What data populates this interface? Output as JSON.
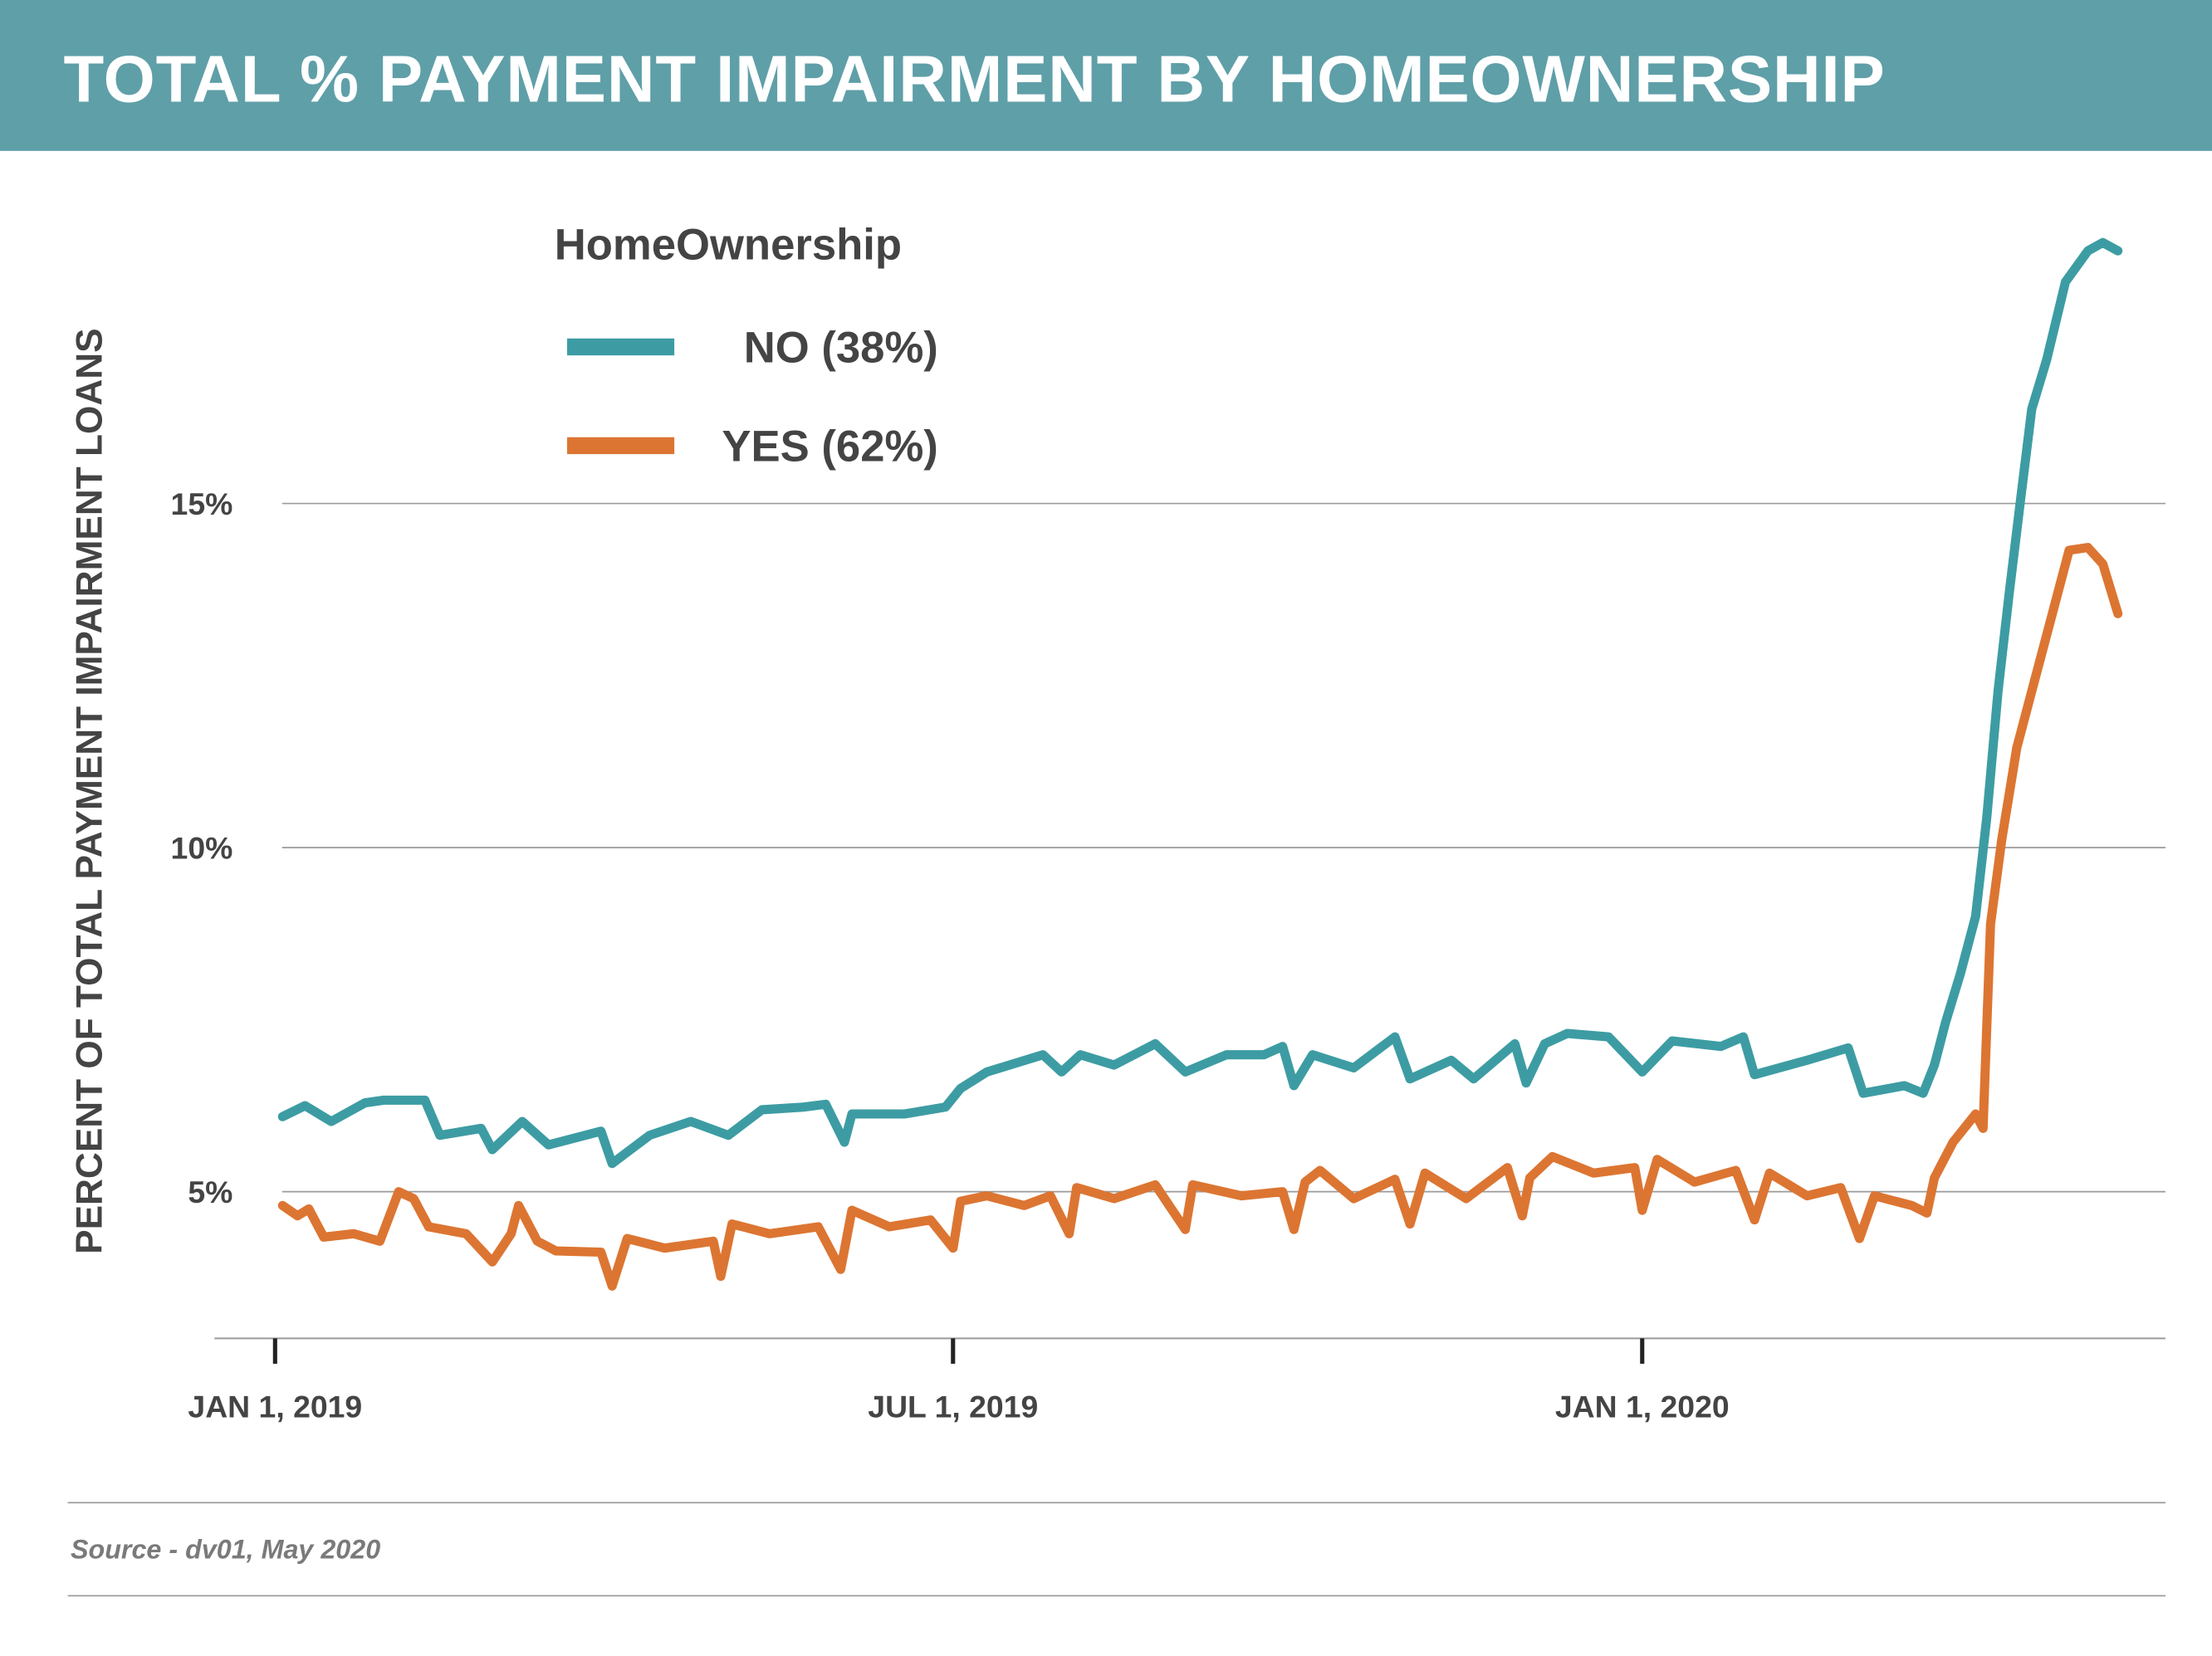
{
  "header": {
    "title": "TOTAL % PAYMENT IMPAIRMENT BY HOMEOWNERSHIP",
    "background": "#5f9fa8"
  },
  "source": "Source - dv01, May 2020",
  "chart_data": {
    "type": "line",
    "title": "TOTAL % PAYMENT IMPAIRMENT BY HOMEOWNERSHIP",
    "xlabel": "",
    "ylabel": "PERCENT OF TOTAL PAYMENT IMPAIRMENT LOANS",
    "x_ticks": [
      {
        "date": "2019-01-01",
        "label": "JAN 1, 2019"
      },
      {
        "date": "2019-07-01",
        "label": "JUL 1, 2019"
      },
      {
        "date": "2020-01-01",
        "label": "JAN 1, 2020"
      }
    ],
    "y_ticks": [
      {
        "value": 5,
        "label": "5%"
      },
      {
        "value": 10,
        "label": "10%"
      },
      {
        "value": 15,
        "label": "15%"
      }
    ],
    "ylim": [
      2.9,
      19.2
    ],
    "grid": "horizontal",
    "legend": {
      "title": "HomeOwnership",
      "placement": "top-left"
    },
    "series": [
      {
        "name": "NO (38%)",
        "color": "#3d9ca3",
        "points": [
          [
            "2019-01-03",
            6.09
          ],
          [
            "2019-01-09",
            6.25
          ],
          [
            "2019-01-16",
            6.02
          ],
          [
            "2019-01-25",
            6.29
          ],
          [
            "2019-01-30",
            6.33
          ],
          [
            "2019-02-10",
            6.33
          ],
          [
            "2019-02-14",
            5.82
          ],
          [
            "2019-02-25",
            5.92
          ],
          [
            "2019-02-28",
            5.61
          ],
          [
            "2019-03-08",
            6.02
          ],
          [
            "2019-03-15",
            5.68
          ],
          [
            "2019-03-29",
            5.88
          ],
          [
            "2019-04-01",
            5.41
          ],
          [
            "2019-04-11",
            5.82
          ],
          [
            "2019-04-22",
            6.02
          ],
          [
            "2019-05-02",
            5.82
          ],
          [
            "2019-05-11",
            6.19
          ],
          [
            "2019-05-22",
            6.23
          ],
          [
            "2019-05-28",
            6.27
          ],
          [
            "2019-06-02",
            5.72
          ],
          [
            "2019-06-04",
            6.13
          ],
          [
            "2019-06-18",
            6.13
          ],
          [
            "2019-06-29",
            6.23
          ],
          [
            "2019-07-03",
            6.5
          ],
          [
            "2019-07-10",
            6.74
          ],
          [
            "2019-07-25",
            6.99
          ],
          [
            "2019-07-30",
            6.74
          ],
          [
            "2019-08-04",
            6.99
          ],
          [
            "2019-08-13",
            6.84
          ],
          [
            "2019-08-24",
            7.15
          ],
          [
            "2019-09-01",
            6.74
          ],
          [
            "2019-09-12",
            6.99
          ],
          [
            "2019-09-22",
            6.99
          ],
          [
            "2019-09-27",
            7.11
          ],
          [
            "2019-09-30",
            6.54
          ],
          [
            "2019-10-05",
            6.99
          ],
          [
            "2019-10-16",
            6.8
          ],
          [
            "2019-10-27",
            7.25
          ],
          [
            "2019-10-31",
            6.64
          ],
          [
            "2019-11-11",
            6.91
          ],
          [
            "2019-11-17",
            6.64
          ],
          [
            "2019-11-28",
            7.15
          ],
          [
            "2019-12-01",
            6.58
          ],
          [
            "2019-12-06",
            7.15
          ],
          [
            "2019-12-12",
            7.3
          ],
          [
            "2019-12-23",
            7.25
          ],
          [
            "2020-01-01",
            6.74
          ],
          [
            "2020-01-09",
            7.19
          ],
          [
            "2020-01-22",
            7.11
          ],
          [
            "2020-01-28",
            7.25
          ],
          [
            "2020-01-31",
            6.7
          ],
          [
            "2020-02-14",
            6.91
          ],
          [
            "2020-02-25",
            7.09
          ],
          [
            "2020-02-29",
            6.43
          ],
          [
            "2020-03-11",
            6.54
          ],
          [
            "2020-03-16",
            6.43
          ],
          [
            "2020-03-19",
            6.84
          ],
          [
            "2020-03-22",
            7.46
          ],
          [
            "2020-03-26",
            8.18
          ],
          [
            "2020-03-30",
            9.0
          ],
          [
            "2020-04-02",
            10.43
          ],
          [
            "2020-04-05",
            12.27
          ],
          [
            "2020-04-08",
            13.71
          ],
          [
            "2020-04-11",
            15.04
          ],
          [
            "2020-04-14",
            16.37
          ],
          [
            "2020-04-18",
            17.09
          ],
          [
            "2020-04-23",
            18.22
          ],
          [
            "2020-04-29",
            18.67
          ],
          [
            "2020-05-03",
            18.79
          ],
          [
            "2020-05-07",
            18.67
          ]
        ]
      },
      {
        "name": "YES (62%)",
        "color": "#dc7532",
        "points": [
          [
            "2019-01-03",
            4.8
          ],
          [
            "2019-01-07",
            4.65
          ],
          [
            "2019-01-10",
            4.75
          ],
          [
            "2019-01-14",
            4.34
          ],
          [
            "2019-01-22",
            4.39
          ],
          [
            "2019-01-29",
            4.28
          ],
          [
            "2019-02-03",
            5.0
          ],
          [
            "2019-02-07",
            4.9
          ],
          [
            "2019-02-11",
            4.49
          ],
          [
            "2019-02-21",
            4.39
          ],
          [
            "2019-02-28",
            3.98
          ],
          [
            "2019-03-05",
            4.39
          ],
          [
            "2019-03-07",
            4.8
          ],
          [
            "2019-03-12",
            4.28
          ],
          [
            "2019-03-17",
            4.14
          ],
          [
            "2019-03-29",
            4.12
          ],
          [
            "2019-04-01",
            3.63
          ],
          [
            "2019-04-05",
            4.32
          ],
          [
            "2019-04-15",
            4.18
          ],
          [
            "2019-04-28",
            4.28
          ],
          [
            "2019-04-30",
            3.77
          ],
          [
            "2019-05-03",
            4.53
          ],
          [
            "2019-05-13",
            4.39
          ],
          [
            "2019-05-26",
            4.49
          ],
          [
            "2019-06-01",
            3.87
          ],
          [
            "2019-06-04",
            4.73
          ],
          [
            "2019-06-14",
            4.49
          ],
          [
            "2019-06-25",
            4.59
          ],
          [
            "2019-07-01",
            4.18
          ],
          [
            "2019-07-03",
            4.86
          ],
          [
            "2019-07-10",
            4.94
          ],
          [
            "2019-07-20",
            4.8
          ],
          [
            "2019-07-27",
            4.94
          ],
          [
            "2019-08-01",
            4.39
          ],
          [
            "2019-08-03",
            5.06
          ],
          [
            "2019-08-13",
            4.9
          ],
          [
            "2019-08-24",
            5.1
          ],
          [
            "2019-09-01",
            4.45
          ],
          [
            "2019-09-03",
            5.1
          ],
          [
            "2019-09-16",
            4.94
          ],
          [
            "2019-09-27",
            5.0
          ],
          [
            "2019-09-30",
            4.45
          ],
          [
            "2019-10-03",
            5.14
          ],
          [
            "2019-10-07",
            5.31
          ],
          [
            "2019-10-16",
            4.9
          ],
          [
            "2019-10-27",
            5.18
          ],
          [
            "2019-10-31",
            4.53
          ],
          [
            "2019-11-04",
            5.27
          ],
          [
            "2019-11-15",
            4.9
          ],
          [
            "2019-11-26",
            5.35
          ],
          [
            "2019-11-30",
            4.65
          ],
          [
            "2019-12-02",
            5.2
          ],
          [
            "2019-12-08",
            5.51
          ],
          [
            "2019-12-19",
            5.27
          ],
          [
            "2019-12-30",
            5.35
          ],
          [
            "2020-01-01",
            4.73
          ],
          [
            "2020-01-05",
            5.47
          ],
          [
            "2020-01-15",
            5.14
          ],
          [
            "2020-01-26",
            5.31
          ],
          [
            "2020-01-31",
            4.59
          ],
          [
            "2020-02-04",
            5.27
          ],
          [
            "2020-02-14",
            4.94
          ],
          [
            "2020-02-23",
            5.06
          ],
          [
            "2020-02-28",
            4.32
          ],
          [
            "2020-03-03",
            4.94
          ],
          [
            "2020-03-13",
            4.8
          ],
          [
            "2020-03-17",
            4.69
          ],
          [
            "2020-03-19",
            5.2
          ],
          [
            "2020-03-24",
            5.72
          ],
          [
            "2020-03-30",
            6.13
          ],
          [
            "2020-04-01",
            5.92
          ],
          [
            "2020-04-03",
            8.89
          ],
          [
            "2020-04-06",
            10.12
          ],
          [
            "2020-04-10",
            11.45
          ],
          [
            "2020-04-14",
            12.27
          ],
          [
            "2020-04-20",
            13.5
          ],
          [
            "2020-04-24",
            14.32
          ],
          [
            "2020-04-29",
            14.36
          ],
          [
            "2020-05-03",
            14.12
          ],
          [
            "2020-05-07",
            13.4
          ]
        ]
      }
    ]
  }
}
